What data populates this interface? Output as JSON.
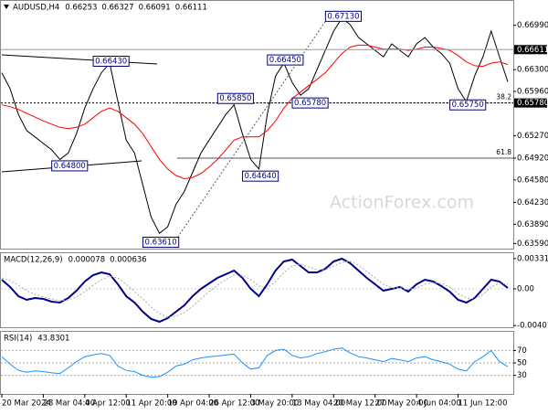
{
  "chart_data": [
    {
      "type": "line",
      "title": "AUDUSD,H4",
      "ohlc": [
        "0.66253",
        "0.66327",
        "0.66091",
        "0.66111"
      ],
      "watermark": "ActionForex.com",
      "ylim": [
        0.6351,
        0.6737
      ],
      "yticks": [
        {
          "value": 0.6699,
          "label": "0.66990"
        },
        {
          "value": 0.663,
          "label": "0.66300"
        },
        {
          "value": 0.6596,
          "label": "0.65960"
        },
        {
          "value": 0.6527,
          "label": "0.65270"
        },
        {
          "value": 0.6492,
          "label": "0.64920"
        },
        {
          "value": 0.6458,
          "label": "0.64580"
        },
        {
          "value": 0.6423,
          "label": "0.64230"
        },
        {
          "value": 0.6389,
          "label": "0.63890"
        },
        {
          "value": 0.6359,
          "label": "0.63590"
        }
      ],
      "price_labels": [
        {
          "value": 0.66611,
          "label": "0.66611"
        },
        {
          "value": 0.6578,
          "label": "0.65780"
        }
      ],
      "fib_levels": [
        {
          "ratio": 38.2,
          "price": 0.6578
        },
        {
          "ratio": 61.8,
          "price": 0.6492
        }
      ],
      "annotations": [
        {
          "value": 0.6643,
          "label": "0.66430"
        },
        {
          "value": 0.648,
          "label": "0.64800"
        },
        {
          "value": 0.6361,
          "label": "0.63610"
        },
        {
          "value": 0.6585,
          "label": "0.65850"
        },
        {
          "value": 0.6464,
          "label": "0.64640"
        },
        {
          "value": 0.6645,
          "label": "0.66450"
        },
        {
          "value": 0.6578,
          "label": "0.65780"
        },
        {
          "value": 0.6713,
          "label": "0.67130"
        },
        {
          "value": 0.6575,
          "label": "0.65750"
        }
      ],
      "series": [
        {
          "color": "#000000",
          "values": [
            0.6625,
            0.66,
            0.656,
            0.6535,
            0.6525,
            0.6515,
            0.6505,
            0.649,
            0.65,
            0.653,
            0.657,
            0.66,
            0.6625,
            0.664,
            0.658,
            0.652,
            0.65,
            0.645,
            0.64,
            0.6375,
            0.6385,
            0.642,
            0.644,
            0.647,
            0.65,
            0.652,
            0.654,
            0.656,
            0.6575,
            0.653,
            0.649,
            0.6475,
            0.656,
            0.662,
            0.664,
            0.661,
            0.659,
            0.66,
            0.663,
            0.666,
            0.669,
            0.671,
            0.67,
            0.668,
            0.667,
            0.666,
            0.665,
            0.667,
            0.666,
            0.665,
            0.667,
            0.668,
            0.6665,
            0.6655,
            0.664,
            0.66,
            0.658,
            0.662,
            0.665,
            0.669,
            0.665,
            0.6611
          ]
        },
        {
          "color": "#ff0000",
          "values": [
            0.6575,
            0.6572,
            0.6568,
            0.6562,
            0.6556,
            0.655,
            0.6545,
            0.654,
            0.6538,
            0.654,
            0.6545,
            0.6555,
            0.6565,
            0.657,
            0.6565,
            0.6555,
            0.6545,
            0.653,
            0.651,
            0.649,
            0.6475,
            0.6465,
            0.646,
            0.6462,
            0.6468,
            0.6478,
            0.649,
            0.6505,
            0.652,
            0.6525,
            0.6525,
            0.6525,
            0.6535,
            0.655,
            0.657,
            0.6585,
            0.6595,
            0.6605,
            0.6615,
            0.6625,
            0.664,
            0.6655,
            0.6665,
            0.6668,
            0.6668,
            0.6665,
            0.6662,
            0.6662,
            0.6662,
            0.666,
            0.6662,
            0.6665,
            0.6665,
            0.6663,
            0.666,
            0.6652,
            0.6642,
            0.6636,
            0.6635,
            0.664,
            0.6642,
            0.6638
          ]
        }
      ]
    },
    {
      "type": "line",
      "title": "MACD(12,26,9)",
      "readout": [
        "0.000078",
        "0.000636"
      ],
      "ylim": [
        -0.0042,
        0.0039
      ],
      "yticks": [
        0.003313,
        {
          "value": 0,
          "label": "0.00"
        },
        -0.004016
      ],
      "series": [
        {
          "color": "#00008b",
          "values": [
            0.001,
            0.0002,
            -0.0008,
            -0.0012,
            -0.001,
            -0.0011,
            -0.0014,
            -0.0015,
            -0.001,
            -0.0002,
            0.0008,
            0.0015,
            0.0018,
            0.0016,
            0.0005,
            -0.0008,
            -0.0015,
            -0.0025,
            -0.0033,
            -0.0036,
            -0.0032,
            -0.0025,
            -0.0018,
            -0.0008,
            0,
            0.0006,
            0.0012,
            0.0016,
            0.002,
            0.0012,
            0,
            -0.0008,
            0.0005,
            0.002,
            0.003,
            0.0032,
            0.0025,
            0.0018,
            0.0018,
            0.0022,
            0.003,
            0.0033,
            0.0028,
            0.002,
            0.0012,
            0.0005,
            -0.0002,
            0,
            0.0002,
            -0.0003,
            0.0005,
            0.001,
            0.0008,
            0.0003,
            -0.0003,
            -0.0012,
            -0.0015,
            -0.001,
            0,
            0.001,
            0.0008,
            0.0001
          ]
        },
        {
          "color": "#aaaaaa",
          "values": [
            0.0012,
            0.0009,
            0.0004,
            -0.0002,
            -0.0006,
            -0.0009,
            -0.0011,
            -0.0013,
            -0.0012,
            -0.0009,
            -0.0003,
            0.0004,
            0.001,
            0.0014,
            0.0012,
            0.0005,
            -0.0003,
            -0.0011,
            -0.002,
            -0.0027,
            -0.0031,
            -0.003,
            -0.0026,
            -0.0019,
            -0.0011,
            -0.0003,
            0.0004,
            0.001,
            0.0015,
            0.0015,
            0.001,
            0.0003,
            0.0001,
            0.0008,
            0.0018,
            0.0025,
            0.0027,
            0.0024,
            0.0021,
            0.0021,
            0.0025,
            0.0029,
            0.003,
            0.0026,
            0.0019,
            0.0012,
            0.0005,
            0.0001,
            0.0001,
            -0.0001,
            0.0001,
            0.0005,
            0.0007,
            0.0006,
            0.0002,
            -0.0005,
            -0.001,
            -0.0011,
            -0.0006,
            0.0002,
            0.0006,
            0.0005
          ]
        }
      ]
    },
    {
      "type": "line",
      "title": "RSI(14)",
      "readout": [
        "43.8301"
      ],
      "ylim": [
        0,
        100
      ],
      "yticks": [
        70,
        50,
        30
      ],
      "categories": [
        "20 Mar 2024",
        null,
        null,
        null,
        null,
        "28 Mar 04:00",
        null,
        null,
        null,
        null,
        "4 Apr 12:00",
        null,
        null,
        null,
        null,
        "11 Apr 20:00",
        null,
        null,
        null,
        null,
        "19 Apr 04:00",
        null,
        null,
        null,
        null,
        "26 Apr 12:00",
        null,
        null,
        null,
        null,
        "3 May 20:00",
        null,
        null,
        null,
        null,
        "13 May 04:00",
        null,
        null,
        null,
        null,
        "20 May 12:00",
        null,
        null,
        null,
        null,
        "27 May 20:00",
        null,
        null,
        null,
        null,
        "4 Jun 04:00",
        null,
        null,
        null,
        null,
        "11 Jun 12:00",
        null,
        null,
        null,
        null,
        null,
        null
      ],
      "series": [
        {
          "color": "#1e90ff",
          "values": [
            60,
            48,
            38,
            35,
            37,
            36,
            34,
            33,
            42,
            52,
            60,
            63,
            65,
            62,
            45,
            38,
            36,
            30,
            27,
            28,
            35,
            45,
            48,
            55,
            58,
            60,
            61,
            63,
            64,
            50,
            40,
            42,
            62,
            70,
            72,
            62,
            58,
            60,
            65,
            68,
            72,
            74,
            66,
            60,
            58,
            55,
            52,
            57,
            55,
            52,
            58,
            60,
            55,
            52,
            48,
            40,
            37,
            52,
            60,
            70,
            52,
            44
          ]
        }
      ]
    }
  ]
}
